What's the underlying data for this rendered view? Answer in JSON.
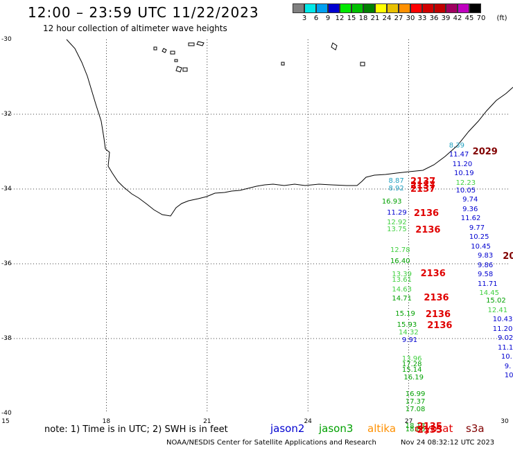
{
  "header": {
    "title": "12:00 – 23:59 UTC 11/22/2023",
    "subtitle": "12 hour collection of altimeter wave heights"
  },
  "height_scale": {
    "unit": "(ft)",
    "labels": [
      "3",
      "6",
      "9",
      "12",
      "15",
      "18",
      "21",
      "24",
      "27",
      "30",
      "33",
      "36",
      "39",
      "42",
      "45",
      "70"
    ],
    "colors": [
      "#808080",
      "#00e8e8",
      "#00a0f0",
      "#0000d0",
      "#00e800",
      "#00c000",
      "#008000",
      "#ffff00",
      "#e8c000",
      "#ff9000",
      "#ff0000",
      "#d00000",
      "#c00000",
      "#a00060",
      "#c000c0",
      "#000000"
    ]
  },
  "axes": {
    "lat_labels": [
      "-30",
      "-32",
      "-34",
      "-36",
      "-38",
      "-40"
    ],
    "lon_labels": [
      "15",
      "18",
      "21",
      "24",
      "27",
      "30"
    ]
  },
  "satellites": {
    "jason2": {
      "name": "jason2",
      "color": "#0000d0"
    },
    "jason3": {
      "name": "jason3",
      "color": "#00a000"
    },
    "altika": {
      "name": "altika",
      "color": "#ff9000"
    },
    "cryosat": {
      "name": "cryosat",
      "color": "#e00000"
    },
    "s3a": {
      "name": "s3a",
      "color": "#800000"
    }
  },
  "observations": [
    {
      "text": "8.39",
      "color": "#20a0c0",
      "lat": -32.85,
      "lon": 28.2
    },
    {
      "text": "11.47",
      "color": "#0000d0",
      "lat": -33.1,
      "lon": 28.2
    },
    {
      "text": "11.20",
      "color": "#0000d0",
      "lat": -33.35,
      "lon": 28.3
    },
    {
      "text": "10.19",
      "color": "#0000d0",
      "lat": -33.6,
      "lon": 28.35
    },
    {
      "text": "12.23",
      "color": "#40d040",
      "lat": -33.85,
      "lon": 28.4
    },
    {
      "text": "10.05",
      "color": "#0000d0",
      "lat": -34.05,
      "lon": 28.4
    },
    {
      "text": "9.74",
      "color": "#0000d0",
      "lat": -34.3,
      "lon": 28.6
    },
    {
      "text": "9.36",
      "color": "#0000d0",
      "lat": -34.55,
      "lon": 28.6
    },
    {
      "text": "11.62",
      "color": "#0000d0",
      "lat": -34.8,
      "lon": 28.55
    },
    {
      "text": "9.77",
      "color": "#0000d0",
      "lat": -35.05,
      "lon": 28.8
    },
    {
      "text": "10.25",
      "color": "#0000d0",
      "lat": -35.3,
      "lon": 28.8
    },
    {
      "text": "10.45",
      "color": "#0000d0",
      "lat": -35.55,
      "lon": 28.85
    },
    {
      "text": "9.83",
      "color": "#0000d0",
      "lat": -35.8,
      "lon": 29.05
    },
    {
      "text": "9.86",
      "color": "#0000d0",
      "lat": -36.05,
      "lon": 29.05
    },
    {
      "text": "9.58",
      "color": "#0000d0",
      "lat": -36.3,
      "lon": 29.05
    },
    {
      "text": "11.71",
      "color": "#0000d0",
      "lat": -36.55,
      "lon": 29.05
    },
    {
      "text": "14.45",
      "color": "#40d040",
      "lat": -36.8,
      "lon": 29.1
    },
    {
      "text": "15.02",
      "color": "#00a000",
      "lat": -37.0,
      "lon": 29.3
    },
    {
      "text": "12.41",
      "color": "#40d040",
      "lat": -37.25,
      "lon": 29.35
    },
    {
      "text": "10.43",
      "color": "#0000d0",
      "lat": -37.5,
      "lon": 29.5
    },
    {
      "text": "11.20",
      "color": "#0000d0",
      "lat": -37.75,
      "lon": 29.5
    },
    {
      "text": "9.02",
      "color": "#0000d0",
      "lat": -38.0,
      "lon": 29.65
    },
    {
      "text": "11.1",
      "color": "#0000d0",
      "lat": -38.25,
      "lon": 29.65
    },
    {
      "text": "10.",
      "color": "#0000d0",
      "lat": -38.5,
      "lon": 29.75
    },
    {
      "text": "9.",
      "color": "#0000d0",
      "lat": -38.75,
      "lon": 29.85
    },
    {
      "text": "10",
      "color": "#0000d0",
      "lat": -39.0,
      "lon": 29.85
    },
    {
      "text": "8.87",
      "color": "#20a0c0",
      "lat": -33.8,
      "lon": 26.4
    },
    {
      "text": "8.92",
      "color": "#20a0c0",
      "lat": -34.0,
      "lon": 26.4
    },
    {
      "text": "16.93",
      "color": "#00a000",
      "lat": -34.35,
      "lon": 26.2
    },
    {
      "text": "11.29",
      "color": "#0000d0",
      "lat": -34.65,
      "lon": 26.35
    },
    {
      "text": "12.92",
      "color": "#40d040",
      "lat": -34.9,
      "lon": 26.35
    },
    {
      "text": "13.75",
      "color": "#40d040",
      "lat": -35.1,
      "lon": 26.35
    },
    {
      "text": "12.78",
      "color": "#40d040",
      "lat": -35.65,
      "lon": 26.45
    },
    {
      "text": "16.40",
      "color": "#00a000",
      "lat": -35.95,
      "lon": 26.45
    },
    {
      "text": "13.39",
      "color": "#40d040",
      "lat": -36.3,
      "lon": 26.5
    },
    {
      "text": "13.61",
      "color": "#40d040",
      "lat": -36.45,
      "lon": 26.5
    },
    {
      "text": "14.63",
      "color": "#40d040",
      "lat": -36.7,
      "lon": 26.5
    },
    {
      "text": "14.71",
      "color": "#00a000",
      "lat": -36.95,
      "lon": 26.5
    },
    {
      "text": "15.19",
      "color": "#00a000",
      "lat": -37.35,
      "lon": 26.6
    },
    {
      "text": "15.93",
      "color": "#00a000",
      "lat": -37.65,
      "lon": 26.65
    },
    {
      "text": "14.32",
      "color": "#40d040",
      "lat": -37.85,
      "lon": 26.7
    },
    {
      "text": "9.91",
      "color": "#0000d0",
      "lat": -38.05,
      "lon": 26.8
    },
    {
      "text": "13.96",
      "color": "#40d040",
      "lat": -38.55,
      "lon": 26.8
    },
    {
      "text": "17.28",
      "color": "#00a000",
      "lat": -38.7,
      "lon": 26.8
    },
    {
      "text": "15.14",
      "color": "#00a000",
      "lat": -38.85,
      "lon": 26.8
    },
    {
      "text": "16.19",
      "color": "#00a000",
      "lat": -39.05,
      "lon": 26.85
    },
    {
      "text": "16.99",
      "color": "#00a000",
      "lat": -39.5,
      "lon": 26.9
    },
    {
      "text": "17.37",
      "color": "#00a000",
      "lat": -39.7,
      "lon": 26.9
    },
    {
      "text": "17.08",
      "color": "#00a000",
      "lat": -39.9,
      "lon": 26.9
    },
    {
      "text": "18.13",
      "color": "#00a000",
      "lat": -40.35,
      "lon": 26.9
    },
    {
      "text": "18.05",
      "color": "#00a000",
      "lat": -40.45,
      "lon": 26.9
    }
  ],
  "passes": [
    {
      "text": "2029",
      "color": "#800000",
      "lat": -33.0,
      "lon": 28.9
    },
    {
      "text": "2137",
      "color": "#e00000",
      "lat": -33.8,
      "lon": 27.05
    },
    {
      "text": "2137",
      "color": "#e00000",
      "lat": -33.9,
      "lon": 27.05
    },
    {
      "text": "2137",
      "color": "#e00000",
      "lat": -34.0,
      "lon": 27.05
    },
    {
      "text": "2136",
      "color": "#e00000",
      "lat": -34.65,
      "lon": 27.15
    },
    {
      "text": "2136",
      "color": "#e00000",
      "lat": -35.1,
      "lon": 27.2
    },
    {
      "text": "2136",
      "color": "#e00000",
      "lat": -36.25,
      "lon": 27.35
    },
    {
      "text": "2136",
      "color": "#e00000",
      "lat": -36.9,
      "lon": 27.45
    },
    {
      "text": "2136",
      "color": "#e00000",
      "lat": -37.35,
      "lon": 27.5
    },
    {
      "text": "2136",
      "color": "#e00000",
      "lat": -37.65,
      "lon": 27.55
    },
    {
      "text": "2135",
      "color": "#e00000",
      "lat": -40.35,
      "lon": 27.25
    },
    {
      "text": "2135",
      "color": "#e00000",
      "lat": -40.45,
      "lon": 27.25
    },
    {
      "text": "20",
      "color": "#800000",
      "lat": -35.8,
      "lon": 29.8
    }
  ],
  "footer": {
    "note": "note: 1) Time is in UTC; 2) SWH is in feet",
    "credit": "NOAA/NESDIS Center for Satellite Applications and Research",
    "timestamp": "Nov 24 08:32:12 UTC 2023"
  }
}
